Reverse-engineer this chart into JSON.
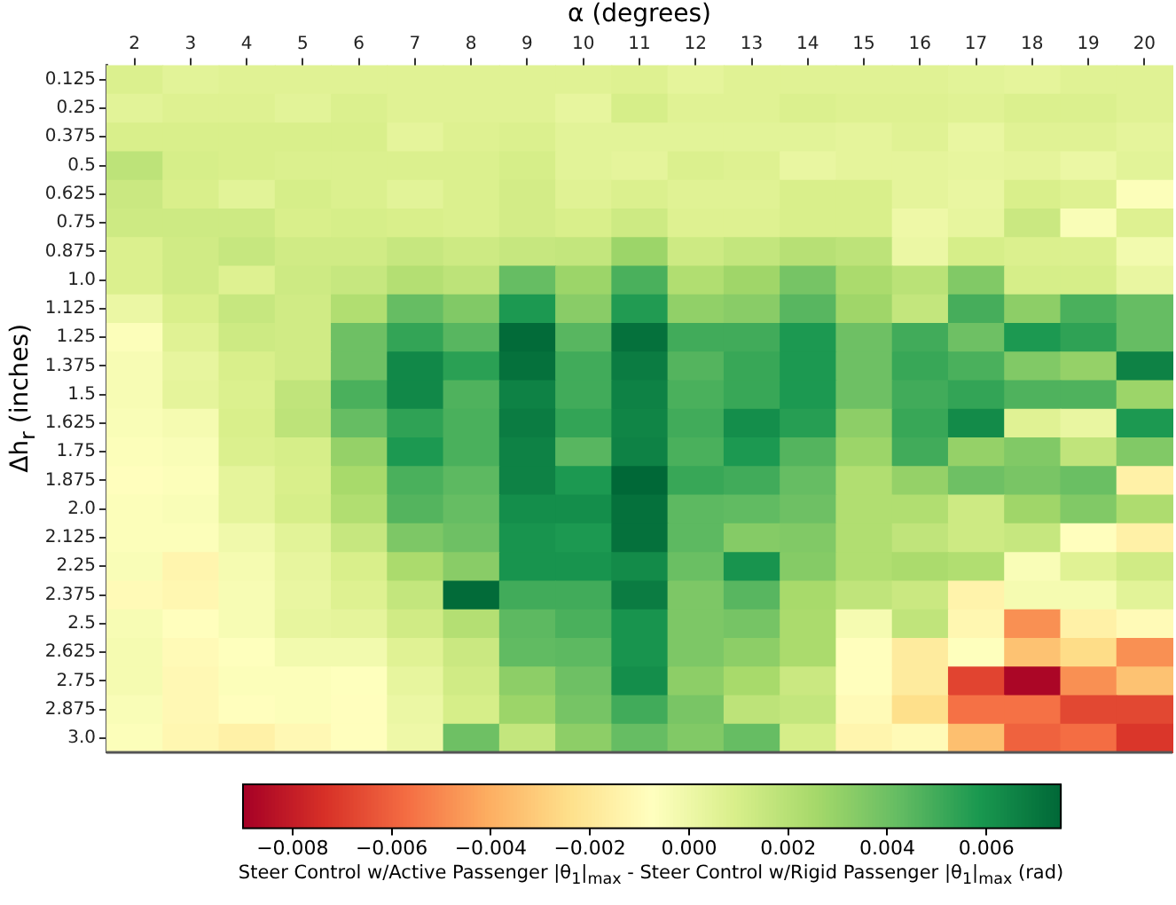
{
  "chart_data": {
    "type": "heatmap",
    "xlabel": "α (degrees)",
    "ylabel": "Δh$_{r}$ (inches)",
    "clabel": "Steer Control w/Active Passenger |θ$_{1}$|$_{max}$ - Steer Control w/Rigid Passenger |θ$_{1}$|$_{max}$ (rad)",
    "categories": [
      "2",
      "3",
      "4",
      "5",
      "6",
      "7",
      "8",
      "9",
      "10",
      "11",
      "12",
      "13",
      "14",
      "15",
      "16",
      "17",
      "18",
      "19",
      "20"
    ],
    "y_categories": [
      "0.125",
      "0.25",
      "0.375",
      "0.5",
      "0.625",
      "0.75",
      "0.875",
      "1.0",
      "1.125",
      "1.25",
      "1.375",
      "1.5",
      "1.625",
      "1.75",
      "1.875",
      "2.0",
      "2.125",
      "2.25",
      "2.375",
      "2.5",
      "2.625",
      "2.75",
      "2.875",
      "3.0"
    ],
    "cells": [
      [
        0.0008,
        0.0005,
        0.0006,
        0.0006,
        0.0006,
        0.0006,
        0.0006,
        0.0006,
        0.0006,
        0.0007,
        0.0004,
        0.0006,
        0.0006,
        0.0006,
        0.0006,
        0.0005,
        0.0004,
        0.0006,
        0.0006
      ],
      [
        0.0005,
        0.0007,
        0.0007,
        0.0005,
        0.0008,
        0.0006,
        0.0006,
        0.0006,
        0.0003,
        0.001,
        0.0006,
        0.0006,
        0.0008,
        0.0007,
        0.0007,
        0.0006,
        0.0008,
        0.0008,
        0.0006
      ],
      [
        0.0009,
        0.0009,
        0.0009,
        0.0009,
        0.0009,
        0.0004,
        0.0007,
        0.0008,
        0.0005,
        0.0005,
        0.0005,
        0.0005,
        0.0005,
        0.0004,
        0.0006,
        0.0002,
        0.0006,
        0.0006,
        0.0004
      ],
      [
        0.0018,
        0.001,
        0.0009,
        0.0008,
        0.0008,
        0.0008,
        0.0008,
        0.001,
        0.0005,
        0.0004,
        0.0008,
        0.0007,
        0.0002,
        0.0004,
        0.0004,
        0.0003,
        0.0004,
        0.0001,
        0.0005
      ],
      [
        0.0014,
        0.0009,
        0.0005,
        0.001,
        0.0008,
        0.0005,
        0.0008,
        0.0011,
        0.0006,
        0.0008,
        0.0006,
        0.0006,
        0.0009,
        0.0009,
        0.0004,
        0.0002,
        0.0009,
        0.0007,
        -0.0006
      ],
      [
        0.0013,
        0.0013,
        0.0013,
        0.0009,
        0.001,
        0.0009,
        0.0008,
        0.0011,
        0.0009,
        0.0013,
        0.0007,
        0.0007,
        0.0009,
        0.0009,
        0.0,
        0.0003,
        0.0014,
        -0.0005,
        0.0007
      ],
      [
        0.0008,
        0.0012,
        0.0015,
        0.0012,
        0.0012,
        0.0015,
        0.0013,
        0.0015,
        0.0016,
        0.0028,
        0.0013,
        0.0016,
        0.002,
        0.0018,
        0.0001,
        0.001,
        0.0008,
        0.0008,
        -0.0002
      ],
      [
        0.0008,
        0.0012,
        0.0007,
        0.0013,
        0.0015,
        0.0021,
        0.0018,
        0.0042,
        0.0028,
        0.0048,
        0.0022,
        0.0027,
        0.0038,
        0.0024,
        0.0019,
        0.0035,
        0.001,
        0.001,
        0.0002
      ],
      [
        0.0001,
        0.0009,
        0.0015,
        0.0012,
        0.0022,
        0.0042,
        0.0035,
        0.0058,
        0.0033,
        0.0057,
        0.0031,
        0.0033,
        0.0045,
        0.0027,
        0.0016,
        0.0049,
        0.0032,
        0.0048,
        0.0042
      ],
      [
        -0.0006,
        0.0006,
        0.0013,
        0.0012,
        0.004,
        0.0053,
        0.0045,
        0.0074,
        0.0045,
        0.0072,
        0.005,
        0.005,
        0.0058,
        0.004,
        0.005,
        0.004,
        0.0058,
        0.0054,
        0.0042
      ],
      [
        -0.0004,
        0.0003,
        0.0009,
        0.0012,
        0.004,
        0.0064,
        0.0055,
        0.0072,
        0.005,
        0.0068,
        0.0046,
        0.0052,
        0.0058,
        0.004,
        0.0052,
        0.0048,
        0.0035,
        0.003,
        0.0066
      ],
      [
        -0.0004,
        0.0004,
        0.0008,
        0.0017,
        0.0048,
        0.0064,
        0.0047,
        0.0066,
        0.005,
        0.0066,
        0.0048,
        0.0052,
        0.0058,
        0.004,
        0.005,
        0.0053,
        0.0047,
        0.0047,
        0.0028
      ],
      [
        -0.0005,
        -0.0003,
        0.0009,
        0.0018,
        0.0042,
        0.0054,
        0.0048,
        0.0068,
        0.0053,
        0.0065,
        0.005,
        0.0062,
        0.0056,
        0.0032,
        0.0052,
        0.0063,
        0.0006,
        0.0002,
        0.0058
      ],
      [
        -0.0006,
        -0.0005,
        0.0008,
        0.001,
        0.003,
        0.0058,
        0.0048,
        0.0066,
        0.0045,
        0.0066,
        0.0048,
        0.0058,
        0.0046,
        0.0028,
        0.005,
        0.003,
        0.0035,
        0.0017,
        0.0035
      ],
      [
        -0.0008,
        -0.0006,
        0.0004,
        0.0009,
        0.0025,
        0.0048,
        0.0044,
        0.0066,
        0.0058,
        0.0075,
        0.0052,
        0.005,
        0.0042,
        0.0022,
        0.003,
        0.004,
        0.0037,
        0.0041,
        -0.0015
      ],
      [
        -0.0006,
        -0.0005,
        0.0004,
        0.001,
        0.0022,
        0.0046,
        0.0042,
        0.0062,
        0.0062,
        0.0072,
        0.0044,
        0.0043,
        0.004,
        0.0022,
        0.0022,
        0.0013,
        0.0027,
        0.0035,
        0.0023
      ],
      [
        -0.0006,
        -0.0006,
        -0.0001,
        0.0005,
        0.0015,
        0.0036,
        0.004,
        0.006,
        0.0058,
        0.0072,
        0.0044,
        0.0034,
        0.0035,
        0.0022,
        0.0017,
        0.0013,
        0.0015,
        -0.0008,
        -0.0015
      ],
      [
        -0.0005,
        -0.0013,
        -0.0003,
        0.0003,
        0.0009,
        0.0024,
        0.0033,
        0.006,
        0.006,
        0.0063,
        0.0041,
        0.006,
        0.0034,
        0.0022,
        0.0024,
        0.0022,
        -0.0005,
        0.0006,
        0.0012
      ],
      [
        -0.001,
        -0.0012,
        -0.0004,
        0.0002,
        0.0007,
        0.0016,
        0.0074,
        0.005,
        0.005,
        0.0068,
        0.0036,
        0.0045,
        0.0025,
        0.0017,
        0.0014,
        -0.0014,
        -0.0003,
        -0.0003,
        0.0005
      ],
      [
        -0.0004,
        -0.0008,
        -0.0004,
        0.0003,
        0.0004,
        0.0012,
        0.0021,
        0.0044,
        0.0048,
        0.006,
        0.0036,
        0.0038,
        0.0024,
        -0.0003,
        0.0017,
        -0.0012,
        -0.0048,
        -0.0015,
        -0.001
      ],
      [
        -0.0003,
        -0.001,
        -0.0007,
        -0.0002,
        -0.0002,
        0.0006,
        0.0014,
        0.0043,
        0.0044,
        0.006,
        0.0036,
        0.0032,
        0.0024,
        -0.0008,
        -0.0018,
        -0.0007,
        -0.0034,
        -0.0025,
        -0.0048
      ],
      [
        -0.0003,
        -0.0011,
        -0.0006,
        -0.0006,
        -0.0007,
        0.0003,
        0.0012,
        0.0032,
        0.004,
        0.0062,
        0.0032,
        0.0025,
        0.0014,
        -0.0008,
        -0.0018,
        -0.0068,
        -0.0088,
        -0.0048,
        -0.0034
      ],
      [
        -0.0005,
        -0.0011,
        -0.0008,
        -0.0006,
        -0.0008,
        0.0001,
        0.001,
        0.0028,
        0.0038,
        0.005,
        0.0037,
        0.0018,
        0.0016,
        -0.001,
        -0.0024,
        -0.0056,
        -0.0056,
        -0.0067,
        -0.0067
      ],
      [
        -0.0006,
        -0.0012,
        -0.0015,
        -0.0011,
        -0.0008,
        0.0,
        0.004,
        0.0016,
        0.0032,
        0.0042,
        0.0035,
        0.0042,
        0.001,
        -0.0013,
        -0.001,
        -0.0035,
        -0.006,
        -0.0057,
        -0.0072
      ]
    ],
    "clim": [
      -0.009,
      0.0075
    ],
    "cticks": [
      {
        "value": -0.008,
        "label": "−0.008"
      },
      {
        "value": -0.006,
        "label": "−0.006"
      },
      {
        "value": -0.004,
        "label": "−0.004"
      },
      {
        "value": -0.002,
        "label": "−0.002"
      },
      {
        "value": 0,
        "label": "0.000"
      },
      {
        "value": 0.002,
        "label": "0.002"
      },
      {
        "value": 0.004,
        "label": "0.004"
      },
      {
        "value": 0.006,
        "label": "0.006"
      }
    ]
  }
}
